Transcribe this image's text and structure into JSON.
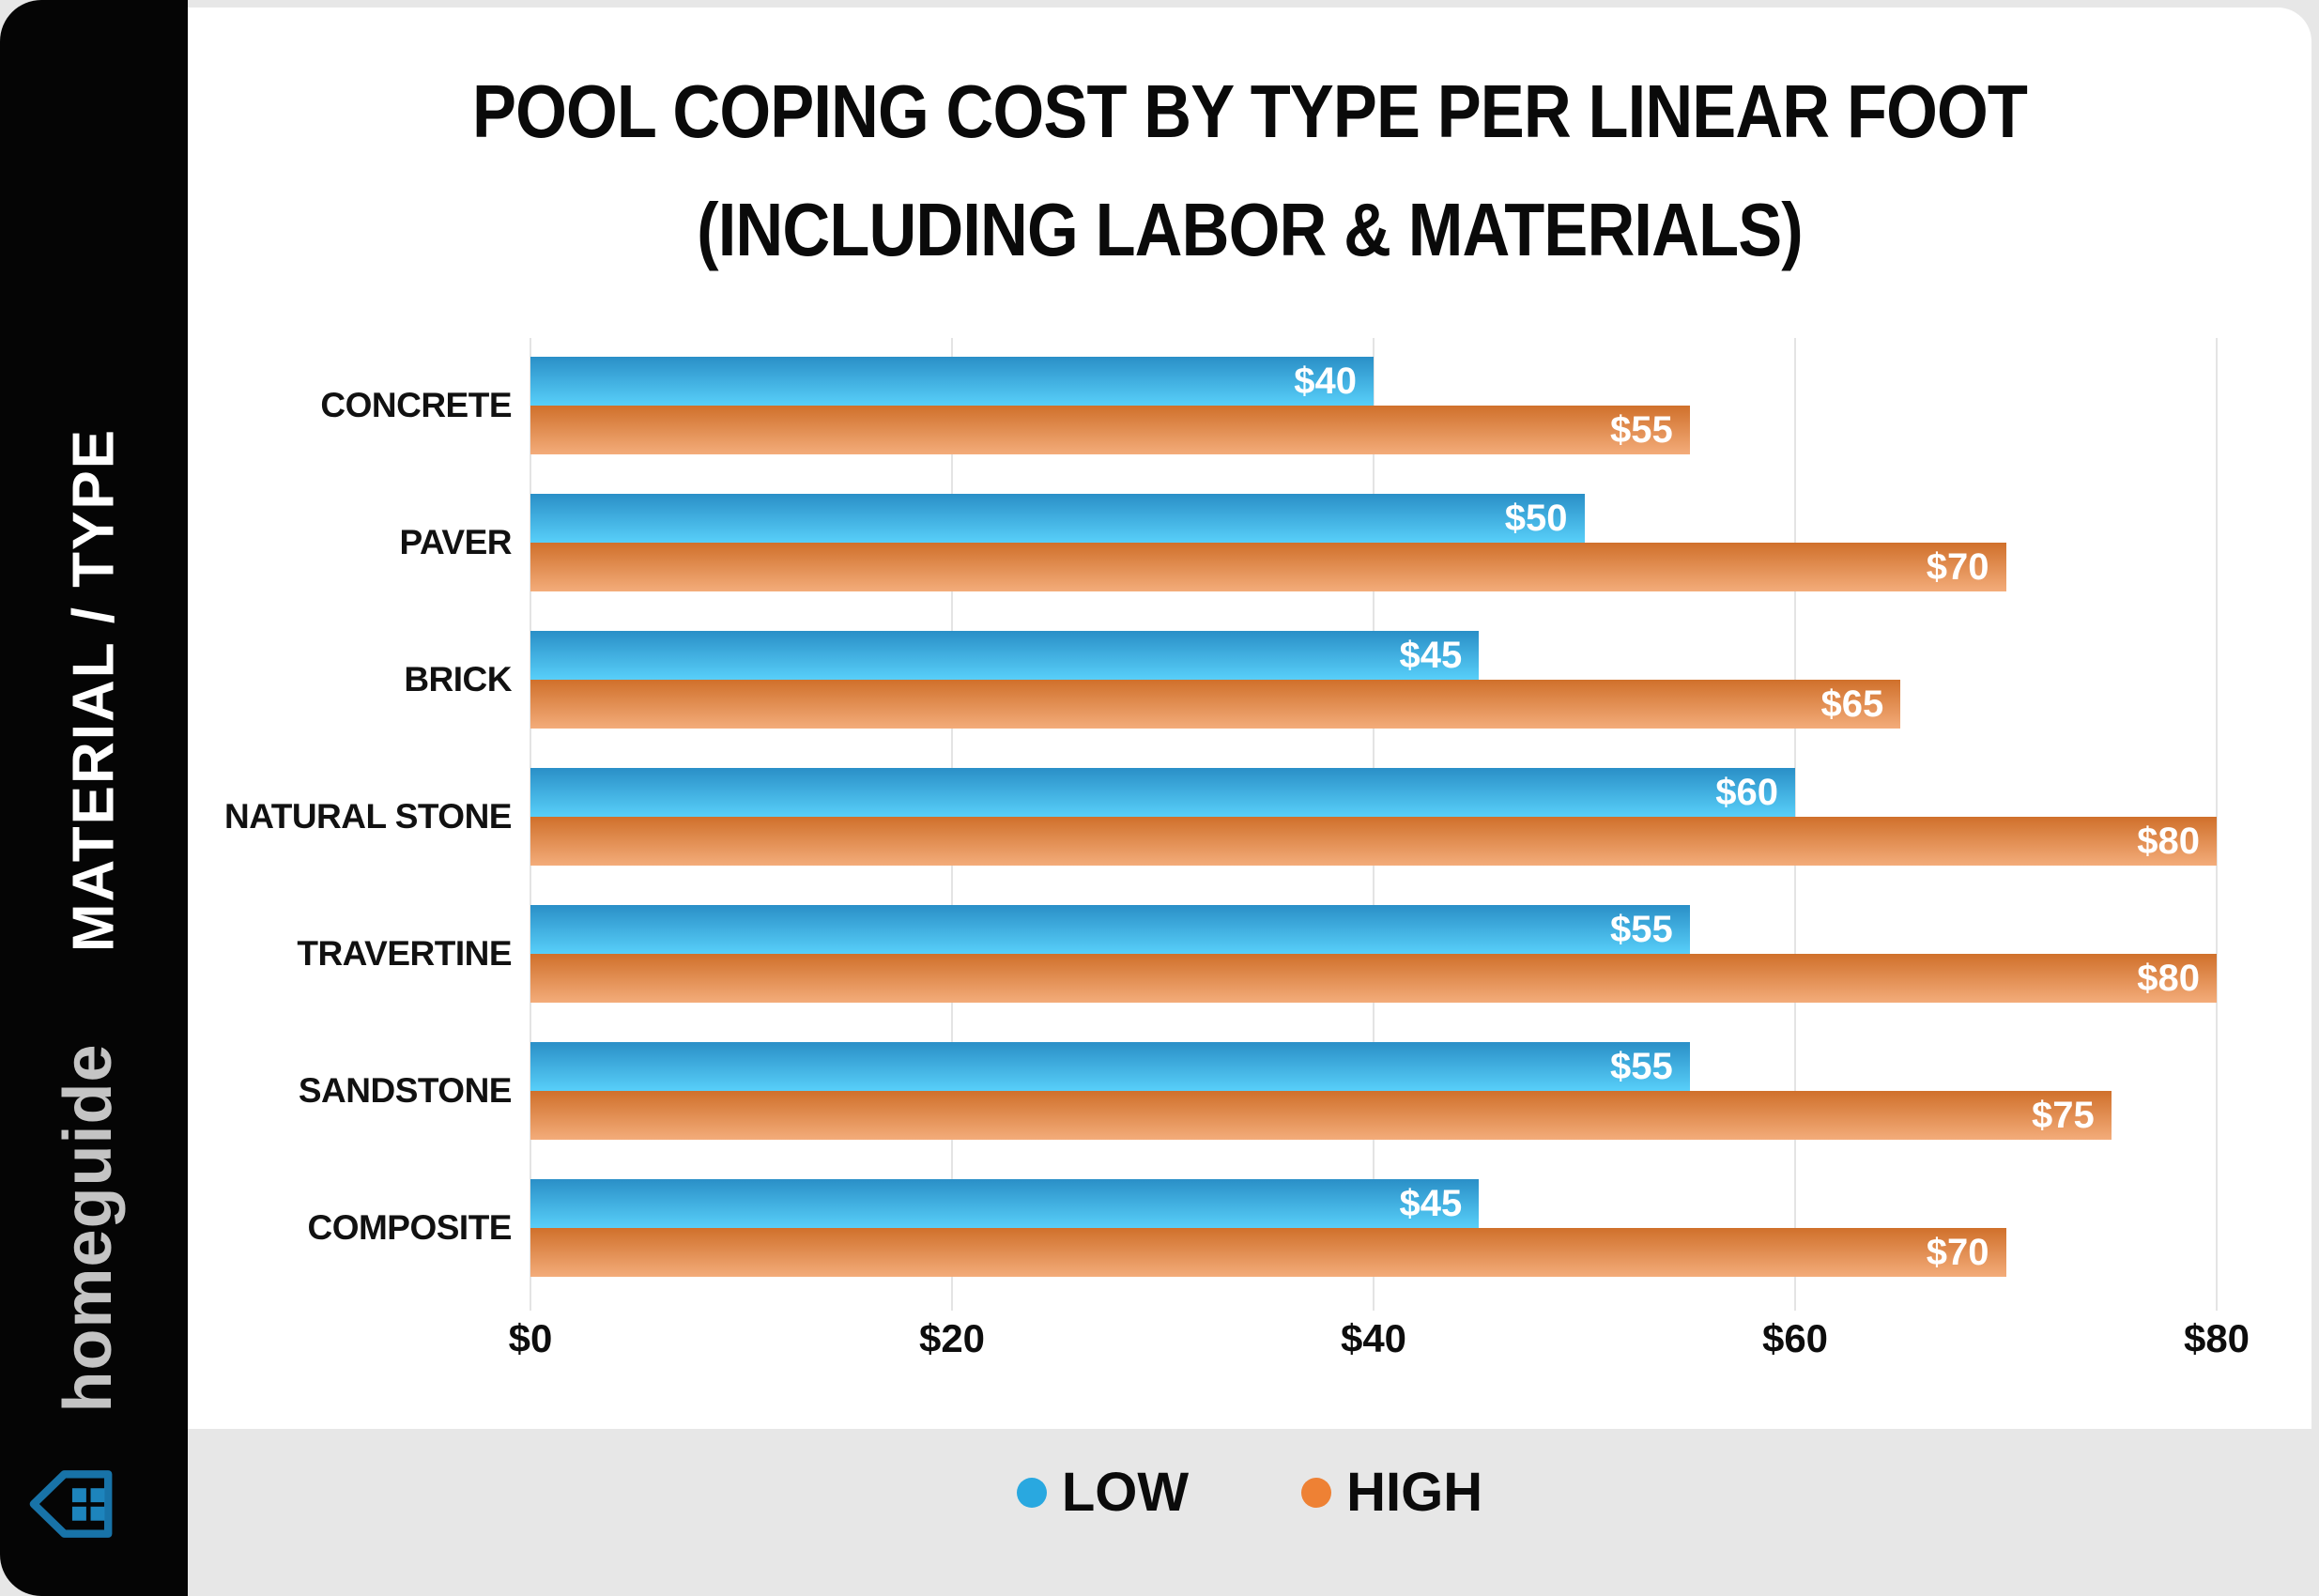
{
  "page": {
    "background_color": "#e7e7e7",
    "card_color": "#ffffff",
    "sidebar_color": "#050505"
  },
  "sidebar": {
    "vertical_label": "MATERIAL / TYPE",
    "brand": "homeguide",
    "house_icon_outline_color": "#1873a8",
    "house_icon_window_color": "#1d84bc"
  },
  "title": {
    "line1": "POOL COPING COST BY TYPE PER LINEAR FOOT",
    "line2": "(INCLUDING LABOR & MATERIALS)"
  },
  "chart_data": {
    "type": "bar",
    "orientation": "horizontal",
    "title": "POOL COPING COST BY TYPE PER LINEAR FOOT (INCLUDING LABOR & MATERIALS)",
    "categories": [
      "CONCRETE",
      "PAVER",
      "BRICK",
      "NATURAL STONE",
      "TRAVERTINE",
      "SANDSTONE",
      "COMPOSITE"
    ],
    "series": [
      {
        "name": "LOW",
        "values": [
          40,
          50,
          45,
          60,
          55,
          55,
          45
        ],
        "legend_color": "#29a8e0",
        "gradient_top": "#2a8fc7",
        "gradient_bottom": "#58cff9"
      },
      {
        "name": "HIGH",
        "values": [
          55,
          70,
          65,
          80,
          80,
          75,
          70
        ],
        "legend_color": "#ee8134",
        "gradient_top": "#d0702b",
        "gradient_bottom": "#f3ac7a"
      }
    ],
    "value_prefix": "$",
    "x_ticks": [
      "$0",
      "$20",
      "$40",
      "$60",
      "$80"
    ],
    "xlim": [
      0,
      80
    ],
    "grid": true,
    "legend_position": "bottom"
  }
}
